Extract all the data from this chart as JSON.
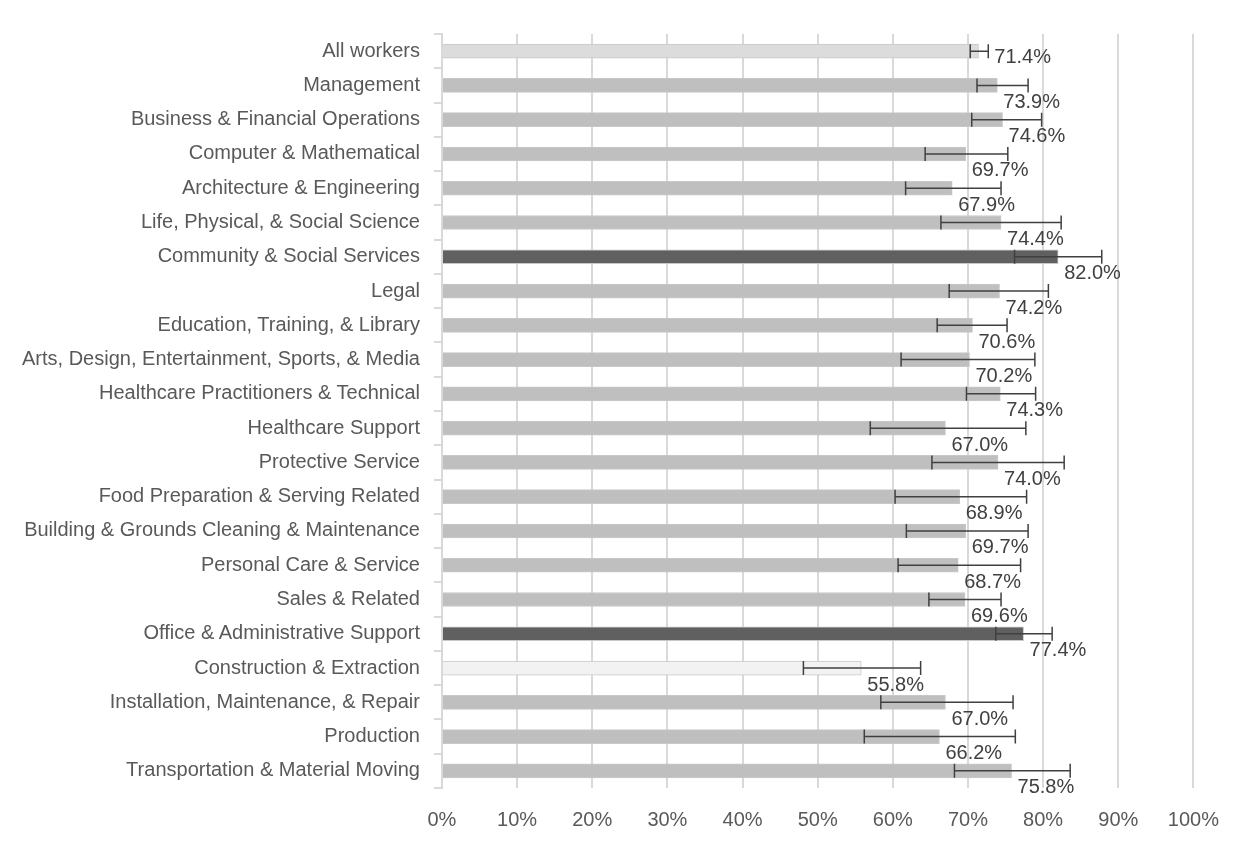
{
  "chart_data": {
    "type": "bar",
    "orientation": "horizontal",
    "categories": [
      "All workers",
      "Management",
      "Business & Financial Operations",
      "Computer & Mathematical",
      "Architecture & Engineering",
      "Life, Physical, & Social Science",
      "Community & Social Services",
      "Legal",
      "Education, Training, & Library",
      "Arts, Design, Entertainment, Sports, & Media",
      "Healthcare Practitioners & Technical",
      "Healthcare Support",
      "Protective Service",
      "Food Preparation & Serving Related",
      "Building & Grounds Cleaning & Maintenance",
      "Personal Care & Service",
      "Sales & Related",
      "Office & Administrative Support",
      "Construction & Extraction",
      "Installation, Maintenance, & Repair",
      "Production",
      "Transportation & Material Moving"
    ],
    "values": [
      71.4,
      73.9,
      74.6,
      69.7,
      67.9,
      74.4,
      82.0,
      74.2,
      70.6,
      70.2,
      74.3,
      67.0,
      74.0,
      68.9,
      69.7,
      68.7,
      69.6,
      77.4,
      55.8,
      67.0,
      66.2,
      75.8
    ],
    "colors": [
      "#dcdcdc",
      "#bfbfbf",
      "#bfbfbf",
      "#bfbfbf",
      "#bfbfbf",
      "#bfbfbf",
      "#606060",
      "#bfbfbf",
      "#bfbfbf",
      "#bfbfbf",
      "#bfbfbf",
      "#bfbfbf",
      "#bfbfbf",
      "#bfbfbf",
      "#bfbfbf",
      "#bfbfbf",
      "#bfbfbf",
      "#606060",
      "#f2f2f2",
      "#bfbfbf",
      "#bfbfbf",
      "#bfbfbf"
    ],
    "errors": [
      [
        70.3,
        72.7
      ],
      [
        71.2,
        78.0
      ],
      [
        70.5,
        79.8
      ],
      [
        64.3,
        75.3
      ],
      [
        61.7,
        74.4
      ],
      [
        66.4,
        82.4
      ],
      [
        76.2,
        87.8
      ],
      [
        67.5,
        80.7
      ],
      [
        65.9,
        75.2
      ],
      [
        61.1,
        78.9
      ],
      [
        69.8,
        79.0
      ],
      [
        57.0,
        77.7
      ],
      [
        65.2,
        82.8
      ],
      [
        60.3,
        77.8
      ],
      [
        61.8,
        78.0
      ],
      [
        60.7,
        77.0
      ],
      [
        64.8,
        74.4
      ],
      [
        73.7,
        81.2
      ],
      [
        48.1,
        63.7
      ],
      [
        58.4,
        76.0
      ],
      [
        56.2,
        76.3
      ],
      [
        68.2,
        83.6
      ]
    ],
    "value_labels": [
      "71.4%",
      "73.9%",
      "74.6%",
      "69.7%",
      "67.9%",
      "74.4%",
      "82.0%",
      "74.2%",
      "70.6%",
      "70.2%",
      "74.3%",
      "67.0%",
      "74.0%",
      "68.9%",
      "69.7%",
      "68.7%",
      "69.6%",
      "77.4%",
      "55.8%",
      "67.0%",
      "66.2%",
      "75.8%"
    ],
    "xlim": [
      0,
      100
    ],
    "xticks": [
      {
        "value": 0,
        "label": "0%"
      },
      {
        "value": 10,
        "label": "10%"
      },
      {
        "value": 20,
        "label": "20%"
      },
      {
        "value": 30,
        "label": "30%"
      },
      {
        "value": 40,
        "label": "40%"
      },
      {
        "value": 50,
        "label": "50%"
      },
      {
        "value": 60,
        "label": "60%"
      },
      {
        "value": 70,
        "label": "70%"
      },
      {
        "value": 80,
        "label": "80%"
      },
      {
        "value": 90,
        "label": "90%"
      },
      {
        "value": 100,
        "label": "100%"
      }
    ],
    "grid": "x",
    "legend": false
  }
}
